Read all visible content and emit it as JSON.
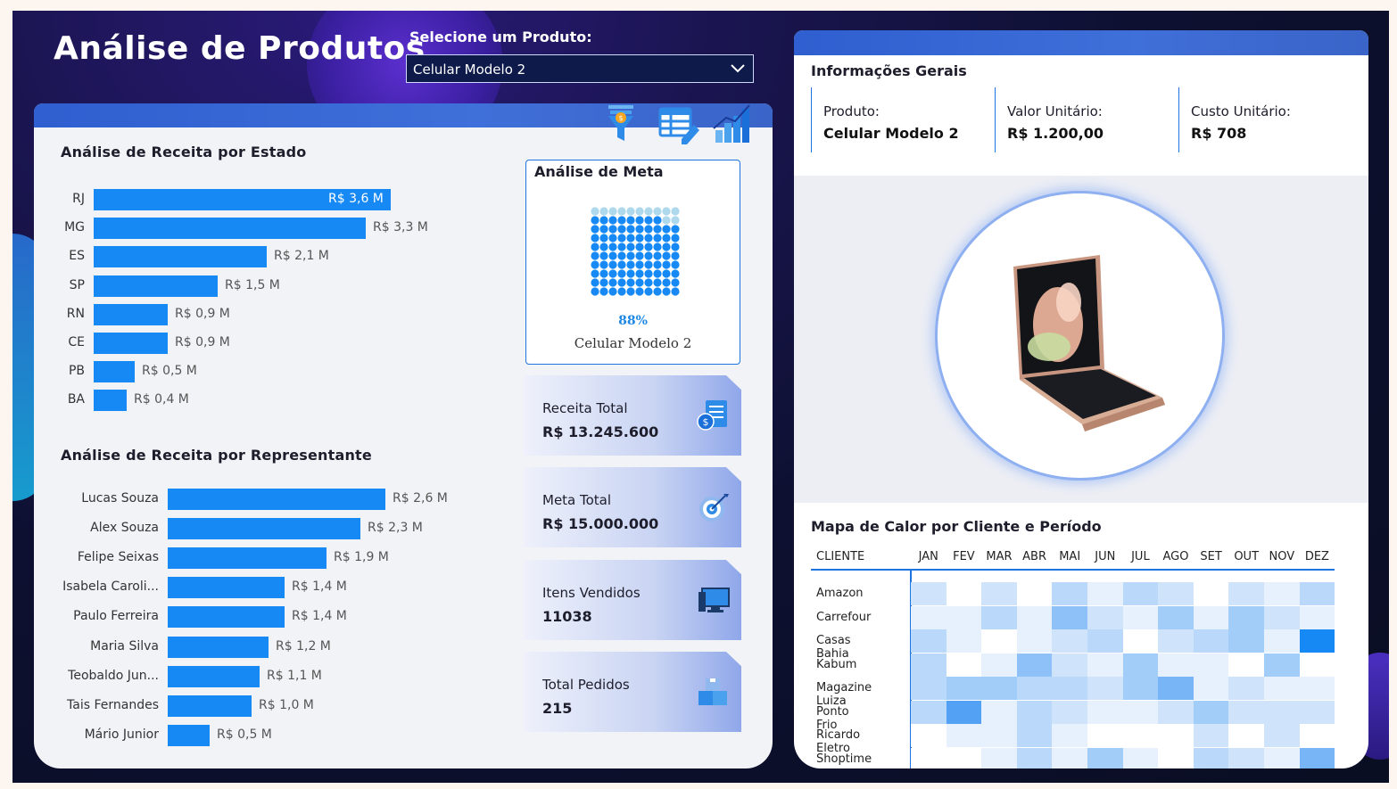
{
  "header": {
    "title": "Análise de Produtos",
    "select_label": "Selecione um Produto:",
    "select_value": "Celular Modelo 2"
  },
  "toolbar": {
    "icons": [
      "filter-icon",
      "table-edit-icon",
      "chart-growth-icon"
    ]
  },
  "revenue_by_state": {
    "title": "Análise de Receita por Estado",
    "items": [
      {
        "label": "RJ",
        "value": 3.6,
        "text": "R$ 3,6 M"
      },
      {
        "label": "MG",
        "value": 3.3,
        "text": "R$ 3,3 M"
      },
      {
        "label": "ES",
        "value": 2.1,
        "text": "R$ 2,1 M"
      },
      {
        "label": "SP",
        "value": 1.5,
        "text": "R$ 1,5 M"
      },
      {
        "label": "RN",
        "value": 0.9,
        "text": "R$ 0,9 M"
      },
      {
        "label": "CE",
        "value": 0.9,
        "text": "R$ 0,9 M"
      },
      {
        "label": "PB",
        "value": 0.5,
        "text": "R$ 0,5 M"
      },
      {
        "label": "BA",
        "value": 0.4,
        "text": "R$ 0,4 M"
      }
    ]
  },
  "revenue_by_rep": {
    "title": "Análise de Receita por Representante",
    "items": [
      {
        "label": "Lucas Souza",
        "value": 2.6,
        "text": "R$ 2,6 M"
      },
      {
        "label": "Alex Souza",
        "value": 2.3,
        "text": "R$ 2,3 M"
      },
      {
        "label": "Felipe Seixas",
        "value": 1.9,
        "text": "R$ 1,9 M"
      },
      {
        "label": "Isabela Caroli...",
        "value": 1.4,
        "text": "R$ 1,4 M"
      },
      {
        "label": "Paulo Ferreira",
        "value": 1.4,
        "text": "R$ 1,4 M"
      },
      {
        "label": "Maria Silva",
        "value": 1.2,
        "text": "R$ 1,2 M"
      },
      {
        "label": "Teobaldo Jun...",
        "value": 1.1,
        "text": "R$ 1,1 M"
      },
      {
        "label": "Tais Fernandes",
        "value": 1.0,
        "text": "R$ 1,0 M"
      },
      {
        "label": "Mário Junior",
        "value": 0.5,
        "text": "R$ 0,5 M"
      }
    ]
  },
  "goal": {
    "title": "Análise de Meta",
    "percent_text": "88%",
    "percent": 88,
    "product": "Celular Modelo 2"
  },
  "kpis": [
    {
      "label": "Receita Total",
      "value": "R$ 13.245.600",
      "icon": "invoice-money-icon"
    },
    {
      "label": "Meta Total",
      "value": "R$ 15.000.000",
      "icon": "target-icon"
    },
    {
      "label": "Itens Vendidos",
      "value": "11038",
      "icon": "computer-icon"
    },
    {
      "label": "Total Pedidos",
      "value": "215",
      "icon": "boxes-icon"
    }
  ],
  "info": {
    "title": "Informações Gerais",
    "product_label": "Produto:",
    "product_value": "Celular Modelo 2",
    "unit_value_label": "Valor Unitário:",
    "unit_value": "R$ 1.200,00",
    "unit_cost_label": "Custo Unitário:",
    "unit_cost": "R$ 708"
  },
  "heatmap": {
    "title": "Mapa de Calor por Cliente e Período",
    "client_header": "CLIENTE",
    "months": [
      "JAN",
      "FEV",
      "MAR",
      "ABR",
      "MAI",
      "JUN",
      "JUL",
      "AGO",
      "SET",
      "OUT",
      "NOV",
      "DEZ"
    ],
    "clients": [
      "Amazon",
      "Carrefour",
      "Casas Bahia",
      "Kabum",
      "Magazine Luiza",
      "Ponto Frio",
      "Ricardo Eletro",
      "Shoptime"
    ],
    "levels": [
      [
        2,
        0,
        2,
        0,
        3,
        1,
        3,
        2,
        0,
        2,
        1,
        3
      ],
      [
        1,
        1,
        3,
        1,
        5,
        2,
        1,
        4,
        1,
        4,
        2,
        1
      ],
      [
        3,
        1,
        0,
        1,
        2,
        3,
        0,
        2,
        3,
        4,
        1,
        8
      ],
      [
        3,
        0,
        1,
        5,
        2,
        1,
        4,
        1,
        1,
        0,
        4,
        0
      ],
      [
        3,
        4,
        4,
        3,
        3,
        2,
        4,
        6,
        1,
        2,
        1,
        1
      ],
      [
        3,
        7,
        1,
        3,
        2,
        1,
        1,
        2,
        4,
        2,
        2,
        2
      ],
      [
        0,
        1,
        1,
        3,
        1,
        0,
        0,
        0,
        2,
        0,
        2,
        0
      ],
      [
        0,
        0,
        1,
        3,
        1,
        4,
        1,
        0,
        3,
        2,
        1,
        6
      ]
    ]
  },
  "colors": {
    "accent": "#1689f4",
    "heat_low": "#f4f8fe",
    "heat_high": "#1689f4"
  }
}
